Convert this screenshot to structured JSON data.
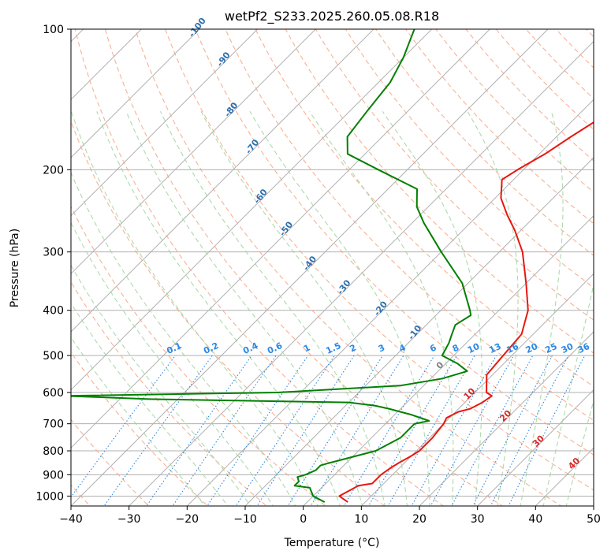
{
  "chart_data": {
    "type": "skew-t",
    "title": "wetPf2_S233.2025.260.05.08.R18",
    "xlabel": "Temperature (°C)",
    "ylabel": "Pressure (hPa)",
    "xlim": [
      -40,
      50
    ],
    "ylim": [
      1050,
      100
    ],
    "y_scale": "log",
    "grid": true,
    "x_ticks": [
      -40,
      -30,
      -20,
      -10,
      0,
      10,
      20,
      30,
      40,
      50
    ],
    "y_ticks": [
      1000,
      900,
      800,
      700,
      600,
      500,
      400,
      300,
      200,
      100
    ],
    "temperature": [
      [
        1030,
        7
      ],
      [
        1000,
        4.5
      ],
      [
        950,
        6
      ],
      [
        940,
        8
      ],
      [
        900,
        8
      ],
      [
        870,
        8.5
      ],
      [
        850,
        9
      ],
      [
        820,
        10
      ],
      [
        800,
        10.5
      ],
      [
        750,
        10.5
      ],
      [
        700,
        10
      ],
      [
        680,
        9.5
      ],
      [
        660,
        10.5
      ],
      [
        650,
        12
      ],
      [
        630,
        13
      ],
      [
        610,
        13.5
      ],
      [
        600,
        12
      ],
      [
        550,
        9
      ],
      [
        500,
        8.5
      ],
      [
        450,
        8
      ],
      [
        400,
        5
      ],
      [
        350,
        0
      ],
      [
        300,
        -6
      ],
      [
        270,
        -11
      ],
      [
        250,
        -15
      ],
      [
        230,
        -19
      ],
      [
        210,
        -22
      ],
      [
        200,
        -21
      ],
      [
        185,
        -19
      ],
      [
        170,
        -17.5
      ],
      [
        150,
        -15
      ],
      [
        130,
        -14
      ],
      [
        115,
        -12
      ],
      [
        100,
        -10
      ]
    ],
    "dewpoint": [
      [
        1030,
        3
      ],
      [
        1000,
        0
      ],
      [
        960,
        -2
      ],
      [
        950,
        -5
      ],
      [
        930,
        -5
      ],
      [
        910,
        -6
      ],
      [
        900,
        -5
      ],
      [
        880,
        -4
      ],
      [
        860,
        -4
      ],
      [
        850,
        -3
      ],
      [
        800,
        3
      ],
      [
        750,
        5
      ],
      [
        700,
        5
      ],
      [
        690,
        7
      ],
      [
        670,
        3
      ],
      [
        650,
        -2
      ],
      [
        640,
        -5
      ],
      [
        630,
        -10
      ],
      [
        620,
        -45
      ],
      [
        610,
        -60
      ],
      [
        600,
        -24
      ],
      [
        580,
        -4
      ],
      [
        560,
        2
      ],
      [
        540,
        5
      ],
      [
        520,
        2
      ],
      [
        500,
        -2
      ],
      [
        470,
        -3
      ],
      [
        450,
        -4
      ],
      [
        430,
        -5
      ],
      [
        410,
        -4
      ],
      [
        400,
        -5
      ],
      [
        350,
        -11
      ],
      [
        300,
        -20
      ],
      [
        260,
        -28
      ],
      [
        240,
        -32
      ],
      [
        220,
        -35
      ],
      [
        200,
        -45
      ],
      [
        185,
        -53
      ],
      [
        170,
        -56
      ],
      [
        150,
        -57
      ],
      [
        130,
        -58
      ],
      [
        115,
        -60
      ],
      [
        100,
        -63
      ]
    ],
    "dry_adiabat_labels": [
      "-100",
      "-90",
      "-80",
      "-70",
      "-60",
      "-50",
      "-40",
      "-30",
      "-20",
      "-10"
    ],
    "mixing_ratio_labels": [
      "0.1",
      "0.2",
      "0.4",
      "0.6",
      "1",
      "1.5",
      "2",
      "3",
      "4",
      "6",
      "8",
      "10",
      "13",
      "16",
      "20",
      "25",
      "30",
      "36"
    ],
    "moist_adiabat_labels": [
      "0",
      "10",
      "20",
      "30",
      "40"
    ],
    "colors": {
      "temperature": "#e8170f",
      "dewpoint": "#008000",
      "dry_adiabat": "#f5a584",
      "moist_adiabat": "#9fd39f",
      "mixing_ratio": "#2a88e6",
      "isotherm_grid": "#b0b0b0",
      "dry_label": "#2e6fb0",
      "mix_label": "#2a88e6",
      "moist_label_zero": "#808080",
      "moist_label": "#d62728"
    }
  }
}
